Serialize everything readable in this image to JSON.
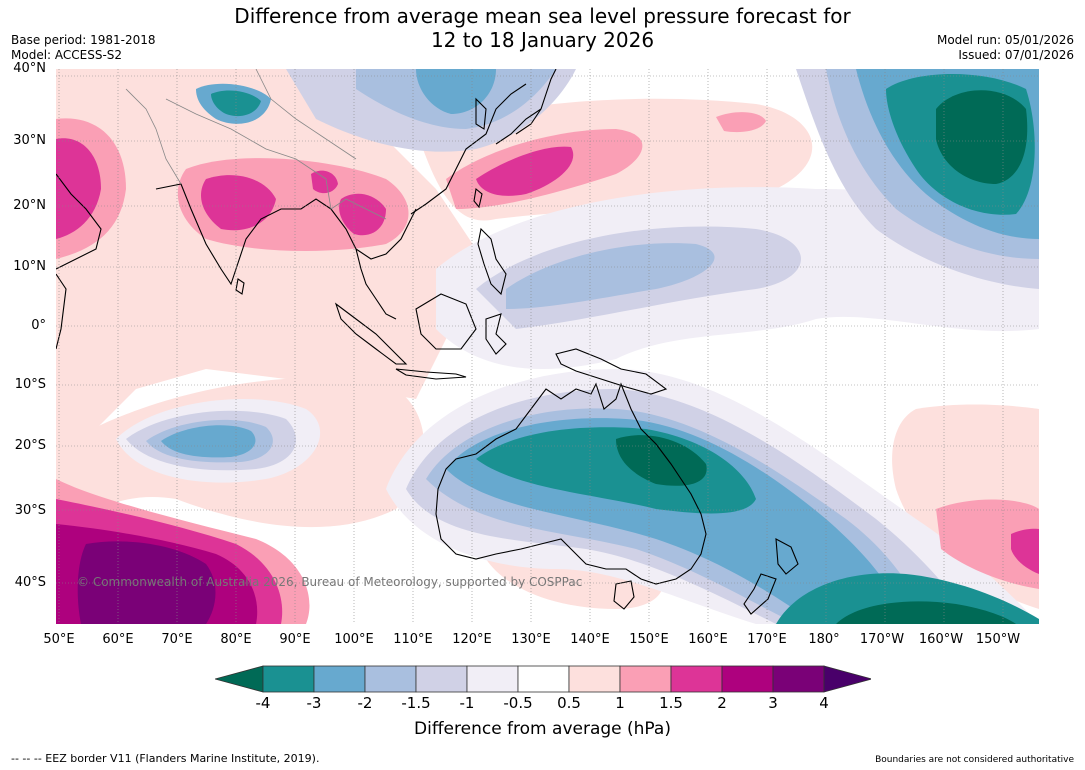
{
  "title": {
    "line1": "Difference from average mean sea level pressure forecast for",
    "line2": "12 to 18 January 2026"
  },
  "meta": {
    "base_period": "Base period: 1981-2018",
    "model": "Model: ACCESS-S2",
    "model_run": "Model run: 05/01/2026",
    "issued": "Issued: 07/01/2026"
  },
  "map": {
    "lat_labels": [
      "40°N",
      "30°N",
      "20°N",
      "10°N",
      "0°",
      "10°S",
      "20°S",
      "30°S",
      "40°S"
    ],
    "lon_labels": [
      "50°E",
      "60°E",
      "70°E",
      "80°E",
      "90°E",
      "100°E",
      "110°E",
      "120°E",
      "130°E",
      "140°E",
      "150°E",
      "160°E",
      "170°E",
      "180°",
      "170°W",
      "160°W",
      "150°W"
    ],
    "copyright": "© Commonwealth of Australia 2026, Bureau of Meteorology, supported by COSPPac"
  },
  "colorbar": {
    "ticks": [
      "-4",
      "-3",
      "-2",
      "-1.5",
      "-1",
      "-0.5",
      "0.5",
      "1",
      "1.5",
      "2",
      "3",
      "4"
    ],
    "colors": [
      "#006a56",
      "#1a9192",
      "#67a9cf",
      "#a9bfdf",
      "#d0d1e6",
      "#f1eef6",
      "#ffffff",
      "#fde0dd",
      "#fa9fb5",
      "#dd3497",
      "#ae017e",
      "#7a0177",
      "#49006a"
    ],
    "title": "Difference from average (hPa)"
  },
  "footer": {
    "eez": "--  --  -- EEZ border V11 (Flanders Marine Institute, 2019).",
    "boundaries": "Boundaries are not considered authoritative"
  }
}
